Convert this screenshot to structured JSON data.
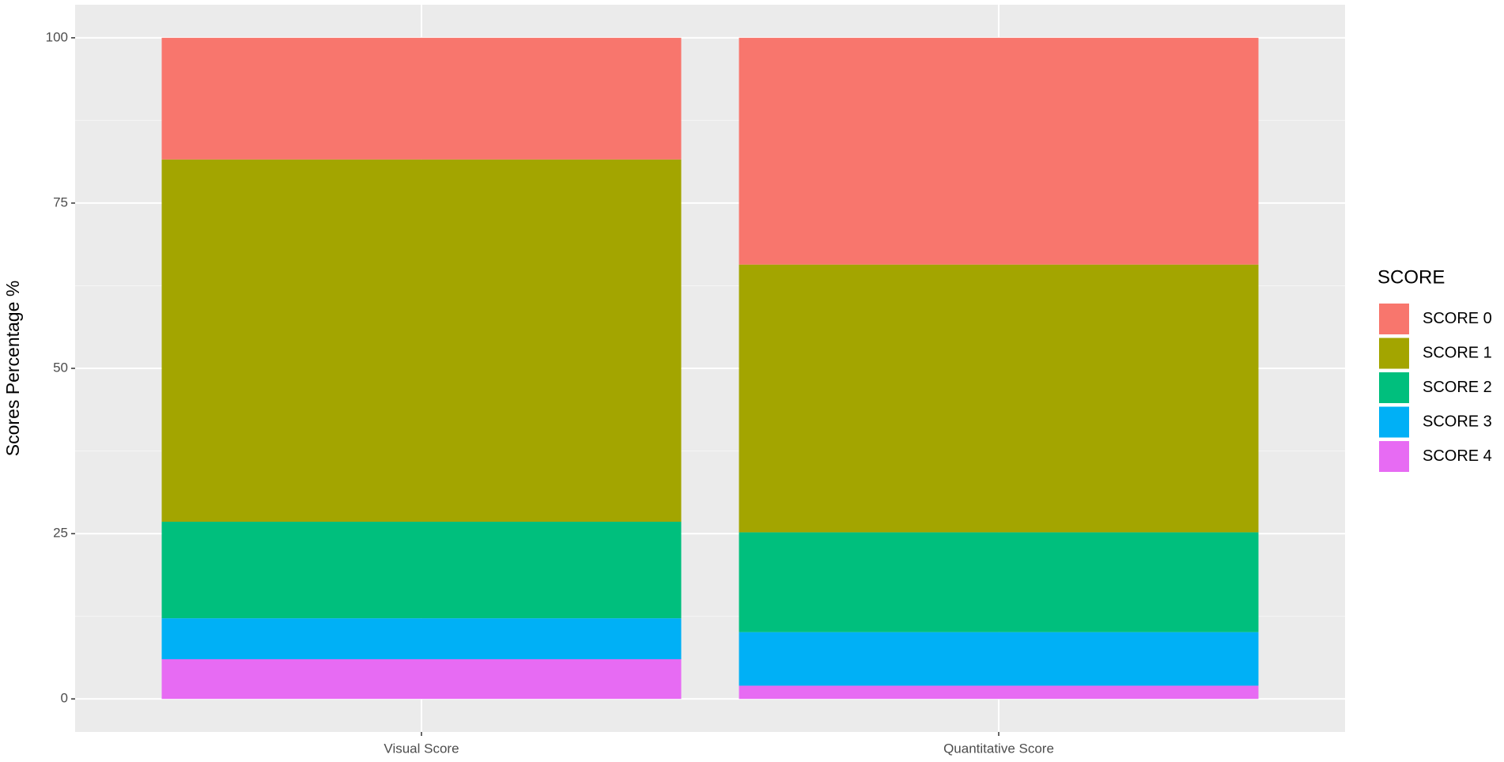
{
  "chart_data": {
    "type": "stacked_bar",
    "y_label": "Scores Percentage %",
    "legend_title": "SCORE",
    "categories": [
      "Visual Score",
      "Quantitative Score"
    ],
    "series": [
      {
        "name": "SCORE 0",
        "color": "#f8766d",
        "values": [
          18.4,
          34.3
        ]
      },
      {
        "name": "SCORE 1",
        "color": "#a3a500",
        "values": [
          54.8,
          40.5
        ]
      },
      {
        "name": "SCORE 2",
        "color": "#00bf7d",
        "values": [
          14.6,
          15.1
        ]
      },
      {
        "name": "SCORE 3",
        "color": "#00b0f6",
        "values": [
          6.2,
          8.1
        ]
      },
      {
        "name": "SCORE 4",
        "color": "#e76bf3",
        "values": [
          6,
          2
        ]
      }
    ],
    "ylim": [
      -5,
      105
    ],
    "yticks": [
      0,
      25,
      50,
      75,
      100
    ],
    "grid": true,
    "legend": "right"
  }
}
